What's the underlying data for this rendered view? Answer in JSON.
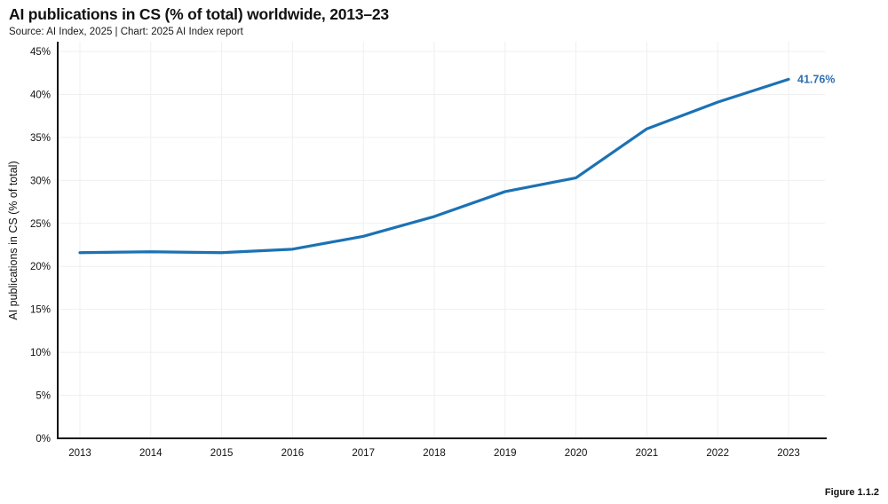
{
  "page": {
    "title": "AI publications in CS (% of total) worldwide, 2013–23",
    "subtitle": "Source: AI Index, 2025 | Chart: 2025 AI Index report",
    "figure_label": "Figure 1.1.2"
  },
  "colors": {
    "background": "#ffffff",
    "line": "#1b72b4",
    "endpoint_label": "#2c6fb0",
    "axis": "#111111",
    "grid": "#efefef",
    "tick_text": "#111111"
  },
  "chart_data": {
    "type": "line",
    "title": "AI publications in CS (% of total) worldwide, 2013–23",
    "subtitle": "Source: AI Index, 2025 | Chart: 2025 AI Index report",
    "x": [
      2013,
      2014,
      2015,
      2016,
      2017,
      2018,
      2019,
      2020,
      2021,
      2022,
      2023
    ],
    "series": [
      {
        "name": "AI publications in CS (% of total)",
        "values": [
          21.6,
          21.7,
          21.6,
          22.0,
          23.5,
          25.8,
          28.7,
          30.3,
          36.0,
          39.1,
          41.76
        ]
      }
    ],
    "xlabel": "",
    "ylabel": "AI publications in CS (% of total)",
    "ylim": [
      0,
      45
    ],
    "ytick_step": 5,
    "ytick_suffix": "%",
    "xtick_labels": [
      "2013",
      "2014",
      "2015",
      "2016",
      "2017",
      "2018",
      "2019",
      "2020",
      "2021",
      "2022",
      "2023"
    ],
    "grid": true,
    "legend": false,
    "end_label": "41.76%"
  }
}
